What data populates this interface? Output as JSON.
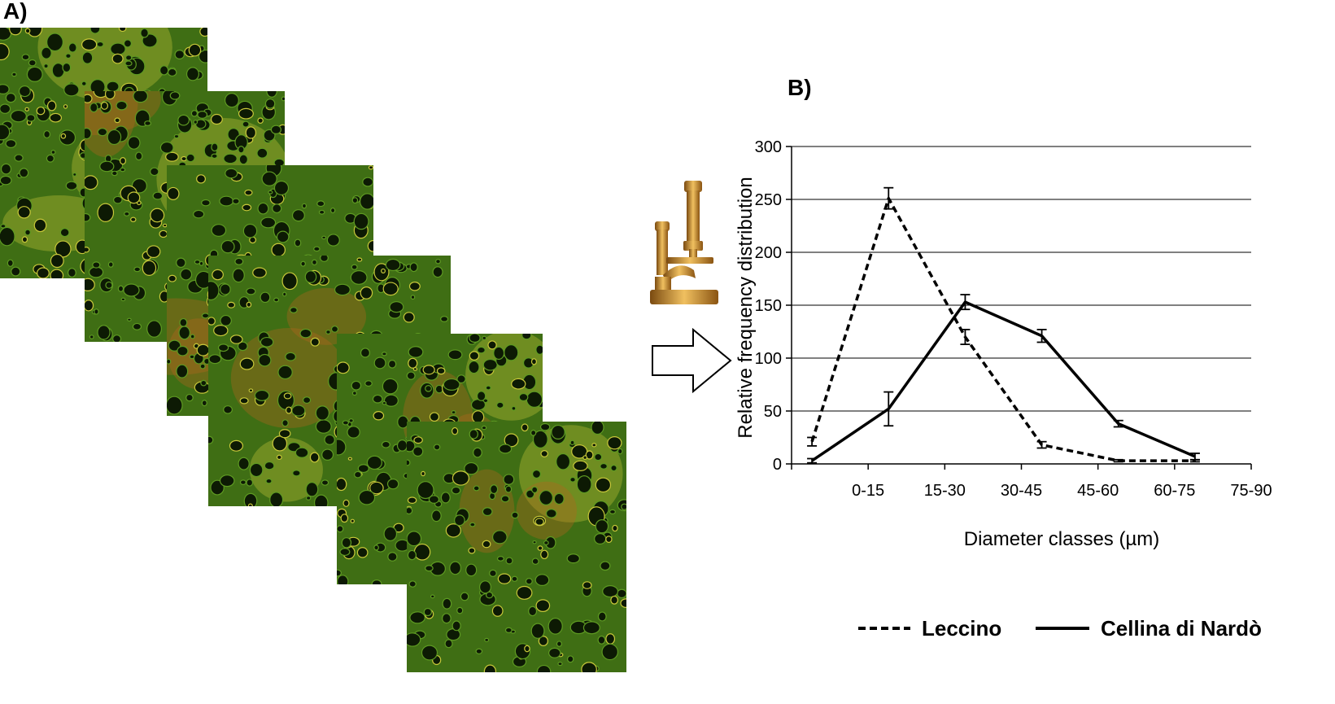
{
  "panel_a": {
    "label": "A)"
  },
  "panel_b": {
    "label": "B)"
  },
  "icons": {
    "microscope": "microscope-icon",
    "arrow": "arrow-right-icon"
  },
  "colors": {
    "tile_green": "#3f6e14",
    "tile_dark": "#0d1a04",
    "tile_orange": "#b8651c",
    "tile_yellow": "#c8c83a",
    "brass": "#c8902a",
    "line": "#000000",
    "grid": "#000000"
  },
  "chart_data": {
    "type": "line",
    "categories": [
      "0-15",
      "15-30",
      "30-45",
      "45-60",
      "60-75",
      "75-90"
    ],
    "xlabel": "Diameter classes (µm)",
    "ylabel": "Relative frequency distribution",
    "ylim": [
      0,
      300
    ],
    "yticks": [
      0,
      50,
      100,
      150,
      200,
      250,
      300
    ],
    "grid": true,
    "legend_position": "bottom",
    "series": [
      {
        "name": "Leccino",
        "style": "dashed",
        "values": [
          21,
          251,
          120,
          18,
          3,
          3
        ],
        "errors": [
          4,
          10,
          7,
          3,
          1,
          1
        ]
      },
      {
        "name": "Cellina di Nardò",
        "style": "solid",
        "values": [
          3,
          52,
          153,
          121,
          38,
          7
        ],
        "errors": [
          2,
          16,
          7,
          6,
          3,
          3
        ]
      }
    ]
  }
}
